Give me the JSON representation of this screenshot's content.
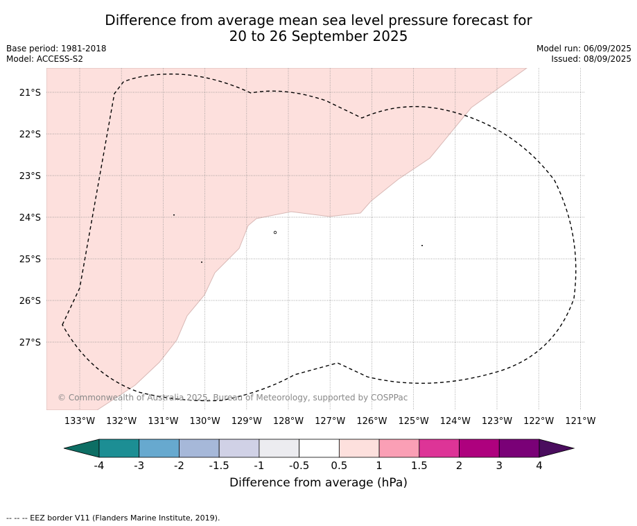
{
  "header": {
    "title_line1": "Difference from average mean sea level pressure forecast for",
    "title_line2": "20 to 26 September 2025",
    "base_period": "Base period: 1981-2018",
    "model": "Model: ACCESS-S2",
    "model_run": "Model run: 06/09/2025",
    "issued": "Issued: 08/09/2025"
  },
  "map": {
    "lat_labels": [
      "21°S",
      "22°S",
      "23°S",
      "24°S",
      "25°S",
      "26°S",
      "27°S"
    ],
    "lon_labels": [
      "133°W",
      "132°W",
      "131°W",
      "130°W",
      "129°W",
      "128°W",
      "127°W",
      "126°W",
      "125°W",
      "124°W",
      "123°W",
      "122°W",
      "121°W"
    ],
    "copyright": "© Commonwealth of Australia 2025, Bureau of Meteorology, supported by COSPPac",
    "shaded_category": "0.5 to 1",
    "colors": {
      "shaded_fill": "#fde0dd",
      "gridline": "#888888",
      "eez_border": "#000000"
    }
  },
  "colorbar": {
    "title": "Difference from average (hPa)",
    "tick_labels": [
      "-4",
      "-3",
      "-2",
      "-1.5",
      "-1",
      "-0.5",
      "0.5",
      "1",
      "1.5",
      "2",
      "3",
      "4"
    ],
    "under_color": "#0d6e64",
    "over_color": "#4a0d5e",
    "colors": [
      "#1c8e94",
      "#67a9cf",
      "#a6b8d9",
      "#d0d1e6",
      "#ececf0",
      "#ffffff",
      "#fde0dd",
      "#fa9fb5",
      "#dd3497",
      "#ae017e",
      "#7a0177"
    ]
  },
  "footnote": "--  --  -- EEZ border V11 (Flanders Marine Institute, 2019)."
}
